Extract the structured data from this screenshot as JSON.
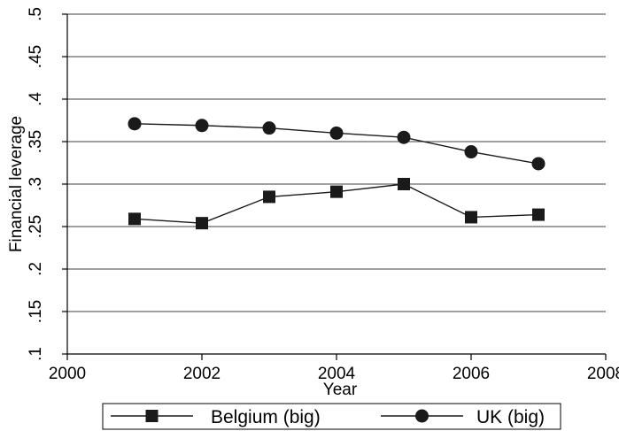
{
  "chart_data": {
    "type": "line",
    "title": "",
    "xlabel": "Year",
    "ylabel": "Financial leverage",
    "xlim": [
      2000,
      2008
    ],
    "ylim": [
      0.1,
      0.5
    ],
    "x_ticks": [
      2000,
      2002,
      2004,
      2006,
      2008
    ],
    "x_tick_labels": [
      "2000",
      "2002",
      "2004",
      "2006",
      "2008"
    ],
    "y_ticks": [
      0.1,
      0.15,
      0.2,
      0.25,
      0.3,
      0.35,
      0.4,
      0.45,
      0.5
    ],
    "y_tick_labels": [
      ".1",
      ".15",
      ".2",
      ".25",
      ".3",
      ".35",
      ".4",
      ".45",
      ".5"
    ],
    "grid": "horizontal",
    "legend_position": "bottom",
    "series": [
      {
        "name": "Belgium (big)",
        "marker": "square",
        "color": "#1a1a1a",
        "x": [
          2001,
          2002,
          2003,
          2004,
          2005,
          2006,
          2007
        ],
        "y": [
          0.259,
          0.254,
          0.285,
          0.291,
          0.3,
          0.261,
          0.264
        ]
      },
      {
        "name": "UK (big)",
        "marker": "circle",
        "color": "#1a1a1a",
        "x": [
          2001,
          2002,
          2003,
          2004,
          2005,
          2006,
          2007
        ],
        "y": [
          0.371,
          0.369,
          0.366,
          0.36,
          0.355,
          0.338,
          0.324
        ]
      }
    ]
  }
}
